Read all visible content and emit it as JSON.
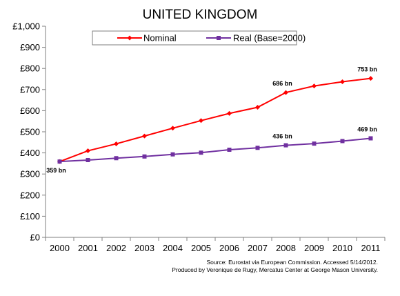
{
  "chart_data": {
    "type": "line",
    "title": "UNITED KINGDOM",
    "xlabel": "",
    "ylabel": "",
    "x": [
      "2000",
      "2001",
      "2002",
      "2003",
      "2004",
      "2005",
      "2006",
      "2007",
      "2008",
      "2009",
      "2010",
      "2011"
    ],
    "ylim": [
      0,
      1000
    ],
    "y_ticks": [
      "£0",
      "£100",
      "£200",
      "£300",
      "£400",
      "£500",
      "£600",
      "£700",
      "£800",
      "£900",
      "£1,000"
    ],
    "grid": false,
    "legend_position": "top-center",
    "series": [
      {
        "name": "Nominal",
        "color": "#ff0000",
        "marker": "diamond",
        "values": [
          359,
          410,
          443,
          480,
          517,
          553,
          587,
          616,
          686,
          717,
          737,
          753
        ]
      },
      {
        "name": "Real (Base=2000)",
        "color": "#7030a0",
        "marker": "square",
        "values": [
          359,
          366,
          375,
          383,
          393,
          401,
          415,
          424,
          436,
          444,
          456,
          469
        ]
      }
    ],
    "annotations": [
      {
        "text": "359 bn",
        "series": 1,
        "index": 0
      },
      {
        "text": "686 bn",
        "series": 0,
        "index": 8
      },
      {
        "text": "753 bn",
        "series": 0,
        "index": 11
      },
      {
        "text": "436 bn",
        "series": 1,
        "index": 8
      },
      {
        "text": "469 bn",
        "series": 1,
        "index": 11
      }
    ],
    "source_lines": [
      "Source: Eurostat via European Commission. Accessed 5/14/2012.",
      "Produced by Veronique de Rugy, Mercatus Center at George Mason University."
    ]
  }
}
